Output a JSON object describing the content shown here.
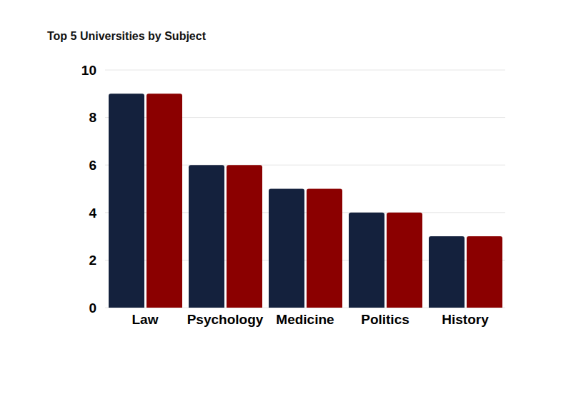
{
  "chart_data": {
    "type": "bar",
    "title": "Top 5 Universities by Subject",
    "categories": [
      "Law",
      "Psychology",
      "Medicine",
      "Politics",
      "History"
    ],
    "series": [
      {
        "color": "#14213d",
        "values": [
          9,
          6,
          5,
          4,
          3
        ]
      },
      {
        "color": "#8b0000",
        "values": [
          9,
          6,
          5,
          4,
          3
        ]
      }
    ],
    "ylim": [
      0,
      10
    ],
    "yticks": [
      0,
      2,
      4,
      6,
      8,
      10
    ],
    "grid": true
  }
}
